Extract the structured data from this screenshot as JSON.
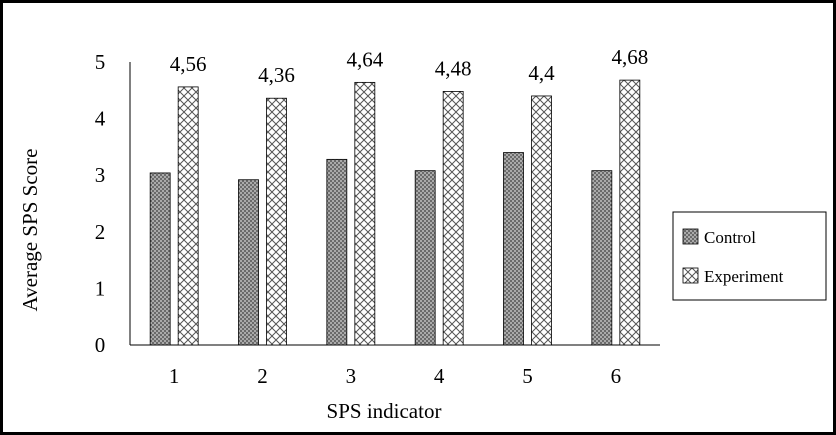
{
  "chart_data": {
    "type": "bar",
    "categories": [
      "1",
      "2",
      "3",
      "4",
      "5",
      "6"
    ],
    "series": [
      {
        "name": "Control",
        "values": [
          3.04,
          2.92,
          3.28,
          3.08,
          3.4,
          3.08
        ],
        "pattern": "dots",
        "color": "#555555",
        "data_labels": null
      },
      {
        "name": "Experiment",
        "values": [
          4.56,
          4.36,
          4.64,
          4.48,
          4.4,
          4.68
        ],
        "pattern": "crosshatch",
        "color": "#555555",
        "data_labels": [
          "4,56",
          "4,36",
          "4,64",
          "4,48",
          "4,4",
          "4,68"
        ]
      }
    ],
    "xlabel": "SPS indicator",
    "ylabel": "Average SPS Score",
    "ylim": [
      0,
      5
    ],
    "yticks": [
      "0",
      "1",
      "2",
      "3",
      "4",
      "5"
    ],
    "grid": false,
    "legend": {
      "position": "right",
      "entries": [
        "Control",
        "Experiment"
      ]
    }
  }
}
